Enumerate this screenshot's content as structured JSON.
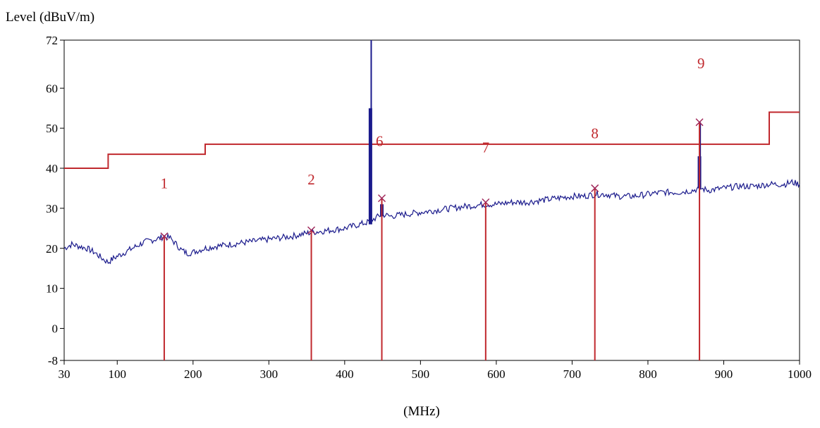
{
  "chart_data": {
    "type": "line",
    "ylabel": "Level (dBuV/m)",
    "xlabel": "(MHz)",
    "xlim": [
      30,
      1000
    ],
    "ylim": [
      -8,
      72
    ],
    "x_ticks": [
      {
        "value": 30,
        "label": "30"
      },
      {
        "value": 100,
        "label": "100"
      },
      {
        "value": 200,
        "label": "200"
      },
      {
        "value": 300,
        "label": "300"
      },
      {
        "value": 400,
        "label": "400"
      },
      {
        "value": 500,
        "label": "500"
      },
      {
        "value": 600,
        "label": "600"
      },
      {
        "value": 700,
        "label": "700"
      },
      {
        "value": 800,
        "label": "800"
      },
      {
        "value": 900,
        "label": "900"
      },
      {
        "value": 1000,
        "label": "1000"
      }
    ],
    "y_ticks": [
      {
        "value": -8,
        "label": "-8"
      },
      {
        "value": 0,
        "label": "0"
      },
      {
        "value": 10,
        "label": "10"
      },
      {
        "value": 20,
        "label": "20"
      },
      {
        "value": 30,
        "label": "30"
      },
      {
        "value": 40,
        "label": "40"
      },
      {
        "value": 50,
        "label": "50"
      },
      {
        "value": 60,
        "label": "60"
      },
      {
        "value": 72,
        "label": "72"
      }
    ],
    "grid": false,
    "colors": {
      "limit": "#c0282d",
      "trace": "#1a1a8c",
      "marker": "#c0282d",
      "axis": "#000000"
    },
    "limit_line": [
      [
        30,
        40
      ],
      [
        88,
        40
      ],
      [
        88,
        43.5
      ],
      [
        216,
        43.5
      ],
      [
        216,
        46
      ],
      [
        960,
        46
      ],
      [
        960,
        54
      ],
      [
        1000,
        54
      ]
    ],
    "trace": [
      [
        30,
        20
      ],
      [
        40,
        21
      ],
      [
        50,
        20.5
      ],
      [
        60,
        20
      ],
      [
        70,
        19
      ],
      [
        80,
        17.5
      ],
      [
        88,
        16.5
      ],
      [
        95,
        17.5
      ],
      [
        105,
        18.5
      ],
      [
        115,
        19.5
      ],
      [
        125,
        20.5
      ],
      [
        135,
        21.5
      ],
      [
        145,
        22
      ],
      [
        155,
        22.5
      ],
      [
        162,
        23
      ],
      [
        170,
        22.5
      ],
      [
        178,
        21
      ],
      [
        185,
        19.5
      ],
      [
        192,
        18.8
      ],
      [
        200,
        19
      ],
      [
        215,
        20
      ],
      [
        230,
        20.5
      ],
      [
        250,
        21
      ],
      [
        270,
        21.5
      ],
      [
        290,
        22
      ],
      [
        310,
        22.5
      ],
      [
        330,
        23
      ],
      [
        356,
        24
      ],
      [
        380,
        24.5
      ],
      [
        400,
        25
      ],
      [
        420,
        26
      ],
      [
        430,
        26.5
      ],
      [
        435,
        27
      ],
      [
        440,
        27.5
      ],
      [
        445,
        28
      ],
      [
        449,
        28.5
      ],
      [
        460,
        28
      ],
      [
        480,
        28.5
      ],
      [
        500,
        29
      ],
      [
        520,
        29.5
      ],
      [
        540,
        30
      ],
      [
        560,
        30.5
      ],
      [
        586,
        31
      ],
      [
        600,
        31
      ],
      [
        620,
        31.5
      ],
      [
        640,
        31.5
      ],
      [
        660,
        32
      ],
      [
        680,
        32.5
      ],
      [
        700,
        33
      ],
      [
        715,
        33
      ],
      [
        730,
        33.5
      ],
      [
        745,
        33.5
      ],
      [
        760,
        33
      ],
      [
        780,
        33
      ],
      [
        800,
        33.5
      ],
      [
        820,
        34
      ],
      [
        840,
        34
      ],
      [
        860,
        34.5
      ],
      [
        868,
        35
      ],
      [
        880,
        34.5
      ],
      [
        900,
        35
      ],
      [
        920,
        35.5
      ],
      [
        940,
        35.5
      ],
      [
        960,
        36
      ],
      [
        980,
        36
      ],
      [
        990,
        36.5
      ],
      [
        1000,
        36
      ]
    ],
    "spikes": [
      {
        "x": 434,
        "from": 26,
        "to": 55,
        "thick": true
      },
      {
        "x": 435,
        "from": 26,
        "to": 72,
        "thick": false
      },
      {
        "x": 449,
        "from": 28,
        "to": 31,
        "thick": true
      },
      {
        "x": 868,
        "from": 35,
        "to": 43,
        "thick": true
      },
      {
        "x": 869,
        "from": 35,
        "to": 51.5,
        "thick": false
      }
    ],
    "markers": [
      {
        "label": "1",
        "x": 162,
        "y": 23,
        "label_x": 162,
        "label_y": 35
      },
      {
        "label": "2",
        "x": 356,
        "y": 24.5,
        "label_x": 356,
        "label_y": 36
      },
      {
        "label": "6",
        "x": 449,
        "y": 32.5,
        "label_x": 446,
        "label_y": 45.5
      },
      {
        "label": "7",
        "x": 586,
        "y": 31.5,
        "label_x": 586,
        "label_y": 44
      },
      {
        "label": "8",
        "x": 730,
        "y": 35,
        "label_x": 730,
        "label_y": 47.5
      },
      {
        "label": "9",
        "x": 868,
        "y": 51.5,
        "label_x": 870,
        "label_y": 65
      }
    ]
  }
}
